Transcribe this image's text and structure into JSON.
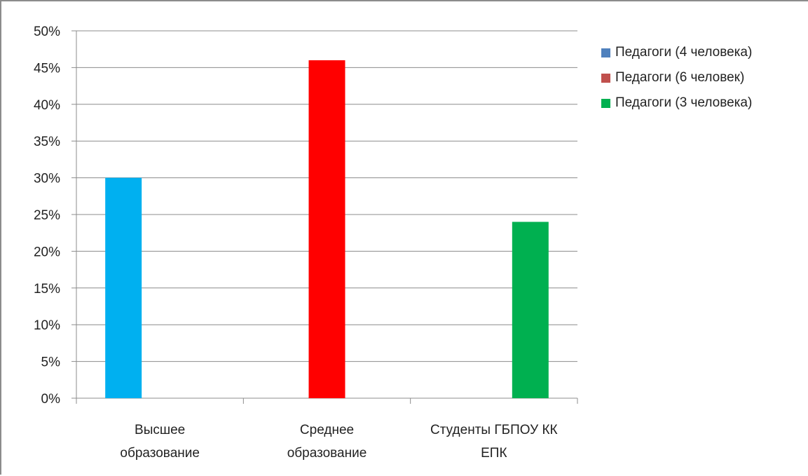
{
  "chart_data": {
    "type": "bar",
    "categories": [
      "Высшее образование",
      "Среднее образование",
      "Студенты ГБПОУ КК ЕПК"
    ],
    "category_label_lines": [
      [
        "Высшее",
        "образование"
      ],
      [
        "Среднее",
        "образование"
      ],
      [
        "Студенты ГБПОУ КК",
        "ЕПК"
      ]
    ],
    "series": [
      {
        "name": "Педагоги (4 человека)",
        "legend_color": "#4f81bd",
        "bar_color": "#00b0f0",
        "values": [
          30,
          null,
          null
        ]
      },
      {
        "name": "Педагоги (6 человек)",
        "legend_color": "#c0504d",
        "bar_color": "#ff0000",
        "values": [
          null,
          46,
          null
        ]
      },
      {
        "name": "Педагоги (3 человека)",
        "legend_color": "#00b050",
        "bar_color": "#00b050",
        "values": [
          null,
          null,
          24
        ]
      }
    ],
    "ylim": [
      0,
      50
    ],
    "ytick_step": 5,
    "y_tick_labels": [
      "0%",
      "5%",
      "10%",
      "15%",
      "20%",
      "25%",
      "30%",
      "35%",
      "40%",
      "45%",
      "50%"
    ],
    "grid": true,
    "legend_position": "right",
    "title": "",
    "xlabel": "",
    "ylabel": ""
  }
}
